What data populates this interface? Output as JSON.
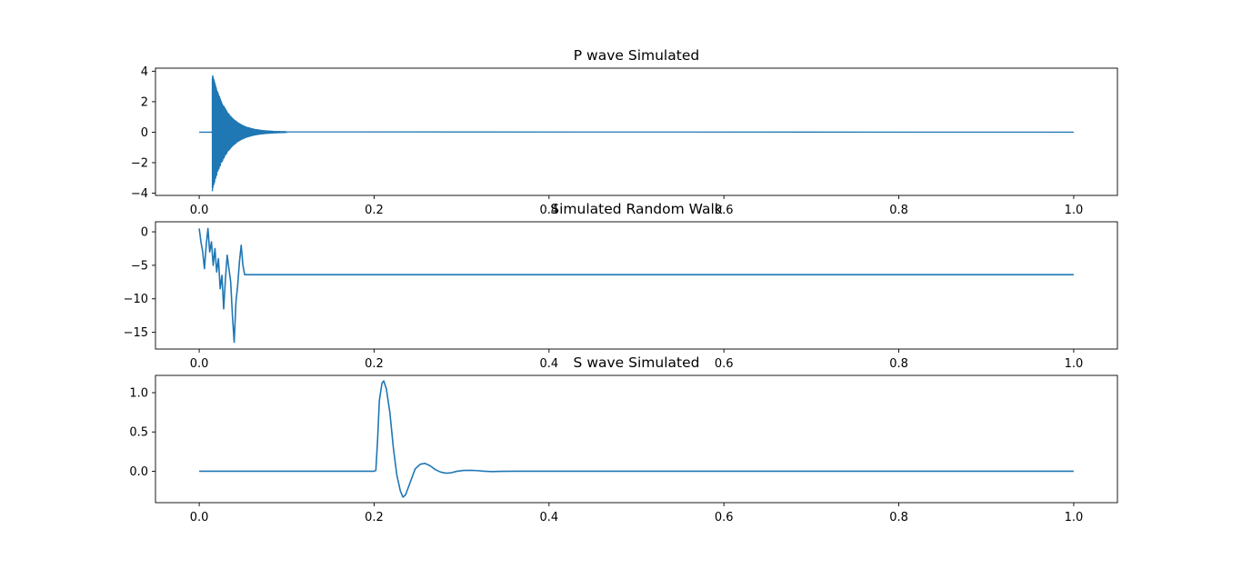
{
  "chart_data": [
    {
      "type": "line",
      "title": "P wave Simulated",
      "xlabel": "",
      "ylabel": "",
      "xlim": [
        -0.05,
        1.05
      ],
      "ylim": [
        -4.15,
        4.2
      ],
      "x_ticks": [
        0.0,
        0.2,
        0.4,
        0.6,
        0.8,
        1.0
      ],
      "x_tick_labels": [
        "0.0",
        "0.2",
        "0.4",
        "0.6",
        "0.8",
        "1.0"
      ],
      "y_ticks": [
        -4,
        -2,
        0,
        2,
        4
      ],
      "y_tick_labels": [
        "−4",
        "−2",
        "0",
        "2",
        "4"
      ],
      "grid": false,
      "series": [
        {
          "color": "#1f77b4",
          "description_values": {
            "baseline": 0,
            "onset_x": 0.015,
            "peak_amplitude": 3.9,
            "decay_end_x": 0.1,
            "end_x": 1.0
          }
        }
      ]
    },
    {
      "type": "line",
      "title": "Simulated Random Walk",
      "xlabel": "",
      "ylabel": "",
      "xlim": [
        -0.05,
        1.05
      ],
      "ylim": [
        -17.5,
        1.5
      ],
      "x_ticks": [
        0.0,
        0.2,
        0.4,
        0.6,
        0.8,
        1.0
      ],
      "x_tick_labels": [
        "0.0",
        "0.2",
        "0.4",
        "0.6",
        "0.8",
        "1.0"
      ],
      "y_ticks": [
        -15,
        -10,
        -5,
        0
      ],
      "y_tick_labels": [
        "−15",
        "−10",
        "−5",
        "0"
      ],
      "grid": false,
      "series": [
        {
          "color": "#1f77b4",
          "points": [
            [
              0.0,
              0.5
            ],
            [
              0.002,
              -1.5
            ],
            [
              0.004,
              -3.0
            ],
            [
              0.006,
              -5.5
            ],
            [
              0.008,
              -2.0
            ],
            [
              0.01,
              0.5
            ],
            [
              0.012,
              -3.0
            ],
            [
              0.014,
              -1.5
            ],
            [
              0.016,
              -5.0
            ],
            [
              0.018,
              -2.5
            ],
            [
              0.02,
              -6.0
            ],
            [
              0.022,
              -4.0
            ],
            [
              0.024,
              -8.5
            ],
            [
              0.026,
              -6.5
            ],
            [
              0.028,
              -11.5
            ],
            [
              0.03,
              -7.0
            ],
            [
              0.032,
              -3.5
            ],
            [
              0.034,
              -5.5
            ],
            [
              0.036,
              -7.5
            ],
            [
              0.038,
              -12.5
            ],
            [
              0.04,
              -16.5
            ],
            [
              0.042,
              -10.5
            ],
            [
              0.044,
              -8.0
            ],
            [
              0.046,
              -4.5
            ],
            [
              0.048,
              -2.0
            ],
            [
              0.05,
              -5.0
            ],
            [
              0.052,
              -6.4
            ],
            [
              1.0,
              -6.4
            ]
          ]
        }
      ]
    },
    {
      "type": "line",
      "title": "S wave Simulated",
      "xlabel": "",
      "ylabel": "",
      "xlim": [
        -0.05,
        1.05
      ],
      "ylim": [
        -0.4,
        1.22
      ],
      "x_ticks": [
        0.0,
        0.2,
        0.4,
        0.6,
        0.8,
        1.0
      ],
      "x_tick_labels": [
        "0.0",
        "0.2",
        "0.4",
        "0.6",
        "0.8",
        "1.0"
      ],
      "y_ticks": [
        0.0,
        0.5,
        1.0
      ],
      "y_tick_labels": [
        "0.0",
        "0.5",
        "1.0"
      ],
      "grid": false,
      "series": [
        {
          "color": "#1f77b4",
          "points": [
            [
              0.0,
              0.0
            ],
            [
              0.2,
              0.0
            ],
            [
              0.202,
              0.01
            ],
            [
              0.204,
              0.4
            ],
            [
              0.206,
              0.9
            ],
            [
              0.209,
              1.12
            ],
            [
              0.211,
              1.15
            ],
            [
              0.214,
              1.05
            ],
            [
              0.218,
              0.75
            ],
            [
              0.222,
              0.3
            ],
            [
              0.226,
              -0.05
            ],
            [
              0.23,
              -0.25
            ],
            [
              0.233,
              -0.33
            ],
            [
              0.236,
              -0.3
            ],
            [
              0.241,
              -0.15
            ],
            [
              0.247,
              0.03
            ],
            [
              0.253,
              0.09
            ],
            [
              0.258,
              0.1
            ],
            [
              0.264,
              0.07
            ],
            [
              0.27,
              0.02
            ],
            [
              0.276,
              -0.01
            ],
            [
              0.282,
              -0.025
            ],
            [
              0.288,
              -0.02
            ],
            [
              0.295,
              0.0
            ],
            [
              0.302,
              0.01
            ],
            [
              0.31,
              0.012
            ],
            [
              0.318,
              0.008
            ],
            [
              0.326,
              0.0
            ],
            [
              0.335,
              -0.004
            ],
            [
              0.345,
              -0.002
            ],
            [
              0.36,
              0.0
            ],
            [
              0.4,
              0.0
            ],
            [
              1.0,
              0.0
            ]
          ]
        }
      ]
    }
  ]
}
